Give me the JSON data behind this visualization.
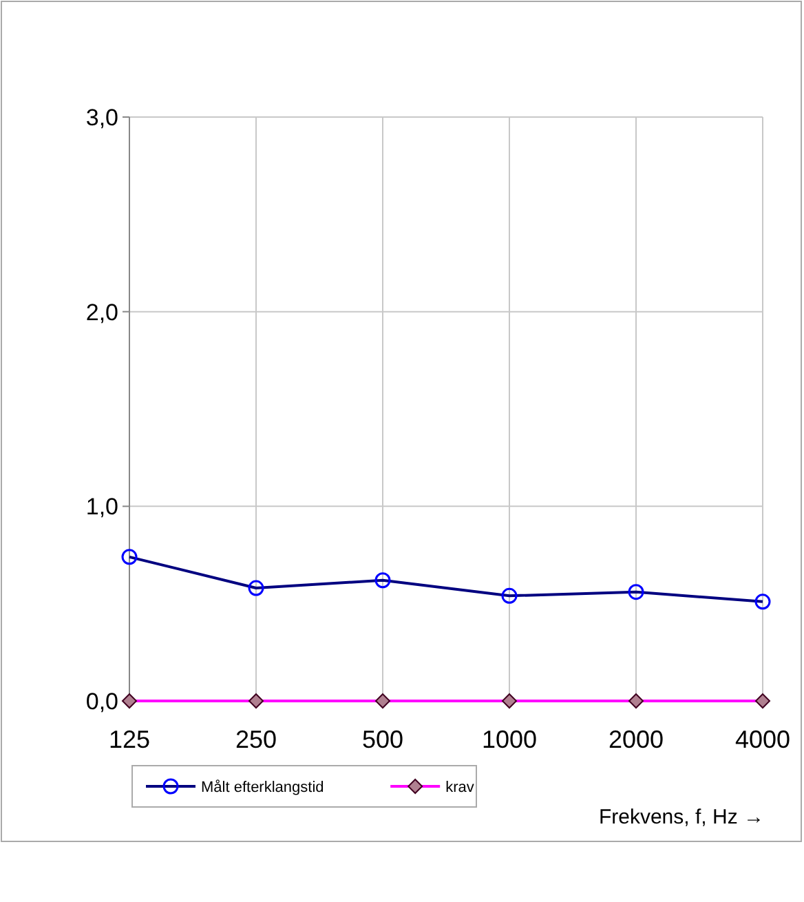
{
  "chart_data": {
    "type": "line",
    "xlabel": "Frekvens, f, Hz →",
    "categories": [
      "125",
      "250",
      "500",
      "1000",
      "2000",
      "4000"
    ],
    "series": [
      {
        "name": "Målt efterklangstid",
        "color": "#000080",
        "marker": "circle",
        "values": [
          0.74,
          0.58,
          0.62,
          0.54,
          0.56,
          0.51
        ]
      },
      {
        "name": "krav",
        "color": "#ff00ff",
        "marker": "diamond",
        "values": [
          0,
          0,
          0,
          0,
          0,
          0
        ]
      }
    ],
    "ylim": [
      0,
      3
    ],
    "yticks": [
      {
        "value": 0,
        "label": "0,0"
      },
      {
        "value": 1,
        "label": "1,0"
      },
      {
        "value": 2,
        "label": "2,0"
      },
      {
        "value": 3,
        "label": "3,0"
      }
    ],
    "grid": true,
    "legend": "bottom"
  }
}
